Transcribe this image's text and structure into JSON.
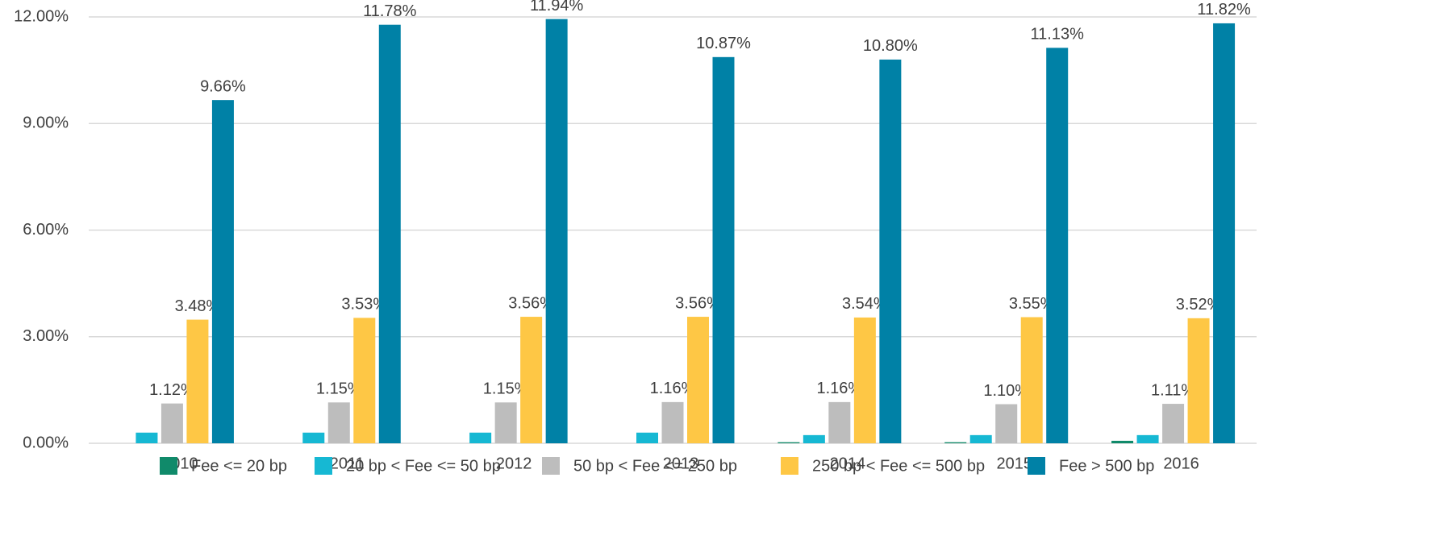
{
  "chart_data": {
    "type": "bar",
    "categories": [
      "2010",
      "2011",
      "2012",
      "2013",
      "2014",
      "2015",
      "2016"
    ],
    "series": [
      {
        "name": "Fee <= 20 bp",
        "color": "#108a6a",
        "values": [
          0,
          0,
          0,
          0,
          0.03,
          0.03,
          0.07
        ]
      },
      {
        "name": "20 bp < Fee <= 50 bp",
        "color": "#16b8d3",
        "values": [
          0.3,
          0.3,
          0.3,
          0.3,
          0.23,
          0.23,
          0.23
        ]
      },
      {
        "name": "50 bp < Fee <= 250 bp",
        "color": "#bdbdbd",
        "values": [
          1.12,
          1.15,
          1.15,
          1.16,
          1.16,
          1.1,
          1.11
        ],
        "value_labels": [
          "1.12%",
          "1.15%",
          "1.15%",
          "1.16%",
          "1.16%",
          "1.10%",
          "1.11%"
        ]
      },
      {
        "name": "250 bp < Fee <= 500 bp",
        "color": "#fec745",
        "values": [
          3.48,
          3.53,
          3.56,
          3.56,
          3.54,
          3.55,
          3.52
        ],
        "value_labels": [
          "3.48%",
          "3.53%",
          "3.56%",
          "3.56%",
          "3.54%",
          "3.55%",
          "3.52%"
        ]
      },
      {
        "name": "Fee > 500 bp",
        "color": "#0081a6",
        "values": [
          9.66,
          11.78,
          11.94,
          10.87,
          10.8,
          11.13,
          11.82
        ],
        "value_labels": [
          "9.66%",
          "11.78%",
          "11.94%",
          "10.87%",
          "10.80%",
          "11.13%",
          "11.82%"
        ]
      }
    ],
    "ylim": [
      0,
      12
    ],
    "yticks": [
      {
        "value": 0,
        "label": "0.00%"
      },
      {
        "value": 3,
        "label": "3.00%"
      },
      {
        "value": 6,
        "label": "6.00%"
      },
      {
        "value": 9,
        "label": "9.00%"
      },
      {
        "value": 12,
        "label": "12.00%"
      }
    ],
    "grid": true,
    "legend": "bottom"
  }
}
